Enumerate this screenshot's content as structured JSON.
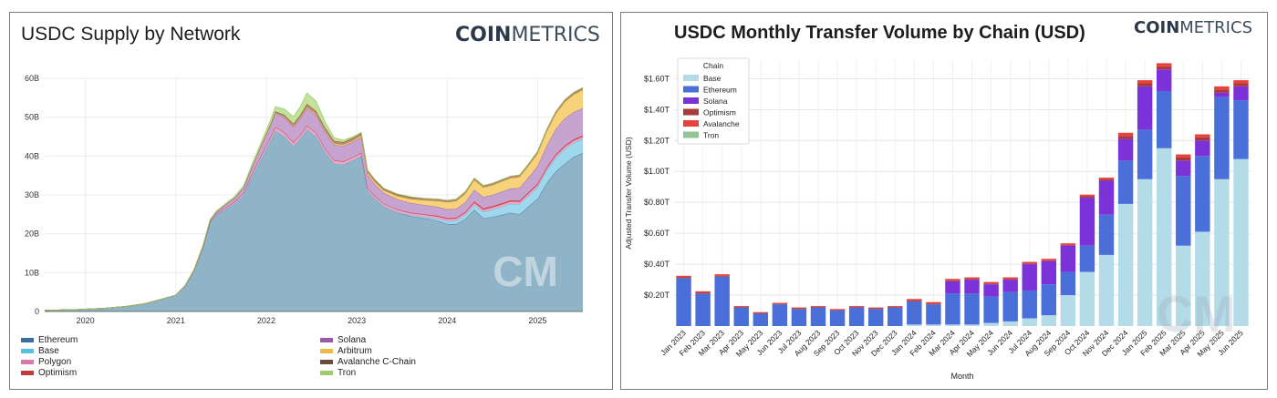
{
  "brand": {
    "bold": "COIN",
    "light": "METRICS"
  },
  "chart_data": [
    {
      "type": "area",
      "stacked": true,
      "title": "USDC Supply by Network",
      "xlabel": "",
      "ylabel": "",
      "x_tick_labels": [
        "2020",
        "2021",
        "2022",
        "2023",
        "2024",
        "2025"
      ],
      "y_tick_labels": [
        "0",
        "10B",
        "20B",
        "30B",
        "40B",
        "50B",
        "60B"
      ],
      "xlim": [
        2019.55,
        2025.5
      ],
      "ylim": [
        0,
        60
      ],
      "y_unit": "billion USD",
      "grid": true,
      "legend_position": "bottom",
      "x": [
        2019.55,
        2019.9,
        2020.2,
        2020.45,
        2020.65,
        2020.8,
        2021.0,
        2021.1,
        2021.2,
        2021.3,
        2021.38,
        2021.45,
        2021.55,
        2021.65,
        2021.75,
        2021.85,
        2021.95,
        2022.05,
        2022.1,
        2022.2,
        2022.3,
        2022.38,
        2022.45,
        2022.55,
        2022.65,
        2022.75,
        2022.85,
        2022.95,
        2023.05,
        2023.12,
        2023.2,
        2023.3,
        2023.45,
        2023.6,
        2023.75,
        2023.9,
        2024.0,
        2024.1,
        2024.2,
        2024.3,
        2024.4,
        2024.5,
        2024.6,
        2024.7,
        2024.8,
        2024.9,
        2025.0,
        2025.1,
        2025.2,
        2025.3,
        2025.4,
        2025.5
      ],
      "series": [
        {
          "name": "Ethereum",
          "color": "#8fb3c7",
          "line": "#3a6f9a",
          "values": [
            0.3,
            0.5,
            0.8,
            1.3,
            2.0,
            2.9,
            4.2,
            6.5,
            10.5,
            16.5,
            23.0,
            24.8,
            26.3,
            27.7,
            30.0,
            35.0,
            39.5,
            44.0,
            46.5,
            45.0,
            42.5,
            44.5,
            46.8,
            45.0,
            41.0,
            38.0,
            37.8,
            38.8,
            40.0,
            31.0,
            29.0,
            27.0,
            25.5,
            24.5,
            24.0,
            23.3,
            22.5,
            22.5,
            23.8,
            26.2,
            24.0,
            24.3,
            24.8,
            25.4,
            25.0,
            27.0,
            29.0,
            33.0,
            36.0,
            38.0,
            39.8,
            40.8
          ]
        },
        {
          "name": "Base",
          "color": "#9fd8ec",
          "line": "#5bbfe0",
          "values": [
            0,
            0,
            0,
            0,
            0,
            0,
            0,
            0,
            0,
            0,
            0,
            0,
            0,
            0,
            0,
            0,
            0,
            0,
            0,
            0,
            0,
            0,
            0,
            0,
            0,
            0,
            0,
            0,
            0,
            0,
            0,
            0,
            0,
            0.2,
            0.3,
            0.5,
            0.7,
            0.8,
            1.0,
            1.2,
            1.6,
            1.9,
            2.1,
            2.3,
            2.6,
            2.8,
            3.0,
            3.2,
            3.5,
            3.8,
            3.6,
            3.6
          ]
        },
        {
          "name": "Polygon",
          "color": "#e9a8c6",
          "line": "#d87aa7",
          "values": [
            0,
            0,
            0,
            0,
            0,
            0,
            0,
            0,
            0,
            0.1,
            0.2,
            0.3,
            0.4,
            0.5,
            0.6,
            0.8,
            0.9,
            1.0,
            1.0,
            1.0,
            1.0,
            1.0,
            1.0,
            1.0,
            0.9,
            0.9,
            0.8,
            0.8,
            0.8,
            0.7,
            0.7,
            0.7,
            0.7,
            0.6,
            0.6,
            0.6,
            0.6,
            0.6,
            0.6,
            0.6,
            0.6,
            0.6,
            0.6,
            0.6,
            0.6,
            0.6,
            0.6,
            0.6,
            0.6,
            0.6,
            0.6,
            0.6
          ]
        },
        {
          "name": "Optimism",
          "color": "#d94a4a",
          "line": "#c23b3b",
          "values": [
            0,
            0,
            0,
            0,
            0,
            0,
            0,
            0,
            0,
            0,
            0,
            0,
            0,
            0,
            0,
            0,
            0,
            0,
            0,
            0,
            0,
            0,
            0,
            0,
            0,
            0,
            0,
            0,
            0,
            0,
            0,
            0,
            0.05,
            0.1,
            0.1,
            0.2,
            0.2,
            0.2,
            0.2,
            0.3,
            0.3,
            0.3,
            0.3,
            0.3,
            0.3,
            0.3,
            0.3,
            0.3,
            0.3,
            0.3,
            0.3,
            0.3
          ]
        },
        {
          "name": "Solana",
          "color": "#c7a3cf",
          "line": "#9a5aa8",
          "values": [
            0,
            0,
            0,
            0,
            0,
            0,
            0,
            0.1,
            0.2,
            0.3,
            0.4,
            0.6,
            0.8,
            1.0,
            1.3,
            1.8,
            2.5,
            3.0,
            3.5,
            4.0,
            4.0,
            4.3,
            4.5,
            4.5,
            4.3,
            4.0,
            4.0,
            4.0,
            4.0,
            3.5,
            3.0,
            2.8,
            2.6,
            2.5,
            2.4,
            2.3,
            2.3,
            2.3,
            2.5,
            3.0,
            2.9,
            2.9,
            3.0,
            3.0,
            3.3,
            3.8,
            4.5,
            5.5,
            6.5,
            7.0,
            7.0,
            7.0
          ]
        },
        {
          "name": "Arbitrum",
          "color": "#f6d27a",
          "line": "#efb84a",
          "values": [
            0,
            0,
            0,
            0,
            0,
            0,
            0,
            0,
            0,
            0,
            0,
            0,
            0,
            0,
            0,
            0,
            0,
            0.1,
            0.1,
            0.1,
            0.2,
            0.2,
            0.3,
            0.3,
            0.3,
            0.3,
            0.3,
            0.3,
            0.4,
            0.5,
            0.6,
            0.6,
            0.8,
            1.0,
            1.2,
            1.5,
            1.8,
            2.0,
            2.2,
            2.5,
            2.5,
            2.5,
            2.6,
            2.7,
            2.8,
            3.0,
            3.2,
            3.6,
            3.9,
            4.2,
            4.5,
            4.7
          ]
        },
        {
          "name": "Avalanche C-Chain",
          "color": "#b88a6a",
          "line": "#6a4a3a",
          "values": [
            0,
            0,
            0,
            0,
            0,
            0,
            0,
            0,
            0,
            0,
            0,
            0,
            0,
            0,
            0,
            0.1,
            0.2,
            0.3,
            0.4,
            0.5,
            0.6,
            0.7,
            0.8,
            0.8,
            0.8,
            0.7,
            0.7,
            0.7,
            0.7,
            0.6,
            0.6,
            0.5,
            0.5,
            0.5,
            0.5,
            0.5,
            0.5,
            0.5,
            0.5,
            0.5,
            0.5,
            0.5,
            0.5,
            0.5,
            0.5,
            0.5,
            0.6,
            0.6,
            0.6,
            0.6,
            0.6,
            0.6
          ]
        },
        {
          "name": "Tron",
          "color": "#c3e39a",
          "line": "#9bcd6a",
          "values": [
            0,
            0,
            0,
            0,
            0,
            0,
            0,
            0,
            0,
            0,
            0.1,
            0.2,
            0.3,
            0.4,
            0.5,
            0.6,
            0.8,
            1.0,
            1.2,
            1.5,
            1.8,
            2.2,
            2.8,
            2.5,
            1.5,
            0.8,
            0.5,
            0.3,
            0.2,
            0.1,
            0.1,
            0.1,
            0.1,
            0.1,
            0,
            0,
            0,
            0,
            0,
            0,
            0,
            0,
            0,
            0,
            0,
            0,
            0,
            0,
            0,
            0,
            0,
            0
          ]
        }
      ]
    },
    {
      "type": "bar",
      "stacked": true,
      "title": "USDC Monthly Transfer Volume by Chain (USD)",
      "xlabel": "Month",
      "ylabel": "Adjusted Transfer Volume (USD)",
      "y_tick_labels": [
        "$0.20T",
        "$0.40T",
        "$0.60T",
        "$0.80T",
        "$1.00T",
        "$1.20T",
        "$1.40T",
        "$1.60T"
      ],
      "ylim": [
        0,
        1.72
      ],
      "y_unit": "trillion USD",
      "grid": true,
      "legend_title": "Chain",
      "legend_position": "top-left",
      "categories": [
        "Jan 2023",
        "Feb 2023",
        "Mar 2023",
        "Apr 2023",
        "May 2023",
        "Jun 2023",
        "Jul 2023",
        "Aug 2023",
        "Sep 2023",
        "Oct 2023",
        "Nov 2023",
        "Dec 2023",
        "Jan 2024",
        "Feb 2024",
        "Mar 2024",
        "Apr 2024",
        "May 2024",
        "Jun 2024",
        "Jul 2024",
        "Aug 2024",
        "Sep 2024",
        "Oct 2024",
        "Nov 2024",
        "Dec 2024",
        "Jan 2025",
        "Feb 2025",
        "Mar 2025",
        "Apr 2025",
        "May 2025",
        "Jun 2025"
      ],
      "series": [
        {
          "name": "Base",
          "color": "#b3dbe8",
          "values": [
            0,
            0,
            0,
            0,
            0,
            0,
            0,
            0,
            0,
            0,
            0,
            0,
            0.01,
            0.01,
            0.01,
            0.01,
            0.02,
            0.03,
            0.05,
            0.07,
            0.2,
            0.35,
            0.46,
            0.79,
            0.95,
            1.15,
            0.52,
            0.61,
            0.95,
            1.08
          ]
        },
        {
          "name": "Ethereum",
          "color": "#4a6fd8",
          "values": [
            0.31,
            0.21,
            0.32,
            0.12,
            0.08,
            0.14,
            0.11,
            0.12,
            0.1,
            0.12,
            0.11,
            0.12,
            0.15,
            0.13,
            0.2,
            0.2,
            0.17,
            0.19,
            0.18,
            0.2,
            0.15,
            0.17,
            0.26,
            0.28,
            0.32,
            0.37,
            0.45,
            0.49,
            0.53,
            0.38
          ]
        },
        {
          "name": "Solana",
          "color": "#7b32d8",
          "values": [
            0,
            0,
            0,
            0,
            0,
            0,
            0,
            0,
            0,
            0,
            0,
            0,
            0,
            0,
            0.08,
            0.09,
            0.08,
            0.08,
            0.17,
            0.15,
            0.17,
            0.31,
            0.22,
            0.14,
            0.28,
            0.14,
            0.1,
            0.1,
            0.03,
            0.09
          ]
        },
        {
          "name": "Optimism",
          "color": "#a83a3a",
          "values": [
            0.005,
            0.005,
            0.005,
            0.005,
            0.005,
            0.005,
            0.005,
            0.005,
            0.005,
            0.005,
            0.005,
            0.005,
            0.005,
            0.005,
            0.005,
            0.005,
            0.005,
            0.005,
            0.005,
            0.005,
            0.005,
            0.01,
            0.01,
            0.02,
            0.02,
            0.02,
            0.02,
            0.02,
            0.02,
            0.02
          ]
        },
        {
          "name": "Avalanche",
          "color": "#e8413a",
          "values": [
            0.01,
            0.01,
            0.01,
            0.005,
            0.005,
            0.005,
            0.005,
            0.005,
            0.005,
            0.005,
            0.005,
            0.005,
            0.01,
            0.01,
            0.01,
            0.01,
            0.01,
            0.01,
            0.01,
            0.01,
            0.01,
            0.01,
            0.01,
            0.02,
            0.02,
            0.02,
            0.02,
            0.02,
            0.02,
            0.02
          ]
        },
        {
          "name": "Tron",
          "color": "#92c596",
          "values": [
            0,
            0,
            0,
            0,
            0,
            0,
            0,
            0,
            0,
            0,
            0,
            0,
            0,
            0,
            0,
            0,
            0,
            0,
            0,
            0,
            0,
            0,
            0,
            0,
            0,
            0,
            0,
            0,
            0,
            0
          ]
        }
      ]
    }
  ]
}
